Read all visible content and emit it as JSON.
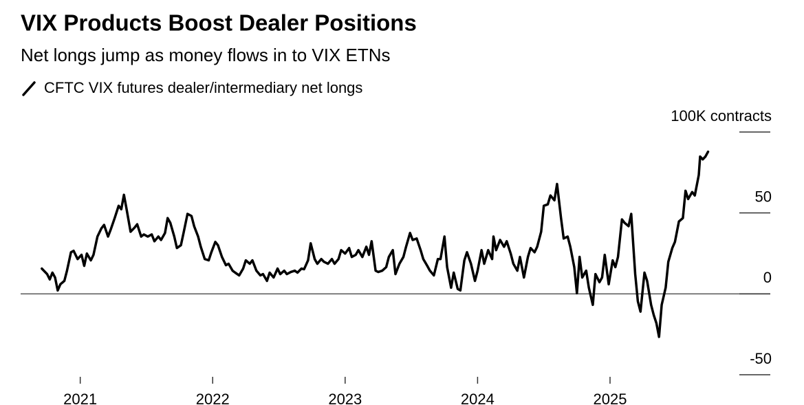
{
  "chart_data": {
    "type": "line",
    "title": "VIX Products Boost Dealer Positions",
    "subtitle": "Net longs jump as money flows in to VIX ETNs",
    "xlim": [
      2020.55,
      2026.21
    ],
    "xticks": [
      2021,
      2022,
      2023,
      2024,
      2025
    ],
    "ylim": [
      -50,
      100
    ],
    "yticks": [
      -50,
      0,
      50,
      {
        "value": 100,
        "label": "100K contracts"
      }
    ],
    "x": [
      2020.71,
      2020.75,
      2020.77,
      2020.79,
      2020.81,
      2020.83,
      2020.85,
      2020.88,
      2020.9,
      2020.93,
      2020.95,
      2020.98,
      2021.01,
      2021.03,
      2021.05,
      2021.08,
      2021.1,
      2021.13,
      2021.16,
      2021.18,
      2021.21,
      2021.23,
      2021.26,
      2021.29,
      2021.31,
      2021.33,
      2021.35,
      2021.38,
      2021.41,
      2021.43,
      2021.46,
      2021.48,
      2021.51,
      2021.54,
      2021.56,
      2021.59,
      2021.61,
      2021.64,
      2021.66,
      2021.68,
      2021.71,
      2021.73,
      2021.76,
      2021.78,
      2021.81,
      2021.84,
      2021.86,
      2021.89,
      2021.91,
      2021.94,
      2021.97,
      2021.99,
      2022.02,
      2022.04,
      2022.07,
      2022.1,
      2022.12,
      2022.15,
      2022.17,
      2022.2,
      2022.23,
      2022.25,
      2022.28,
      2022.3,
      2022.33,
      2022.36,
      2022.38,
      2022.41,
      2022.43,
      2022.46,
      2022.49,
      2022.51,
      2022.54,
      2022.56,
      2022.59,
      2022.62,
      2022.64,
      2022.67,
      2022.69,
      2022.72,
      2022.74,
      2022.77,
      2022.79,
      2022.82,
      2022.84,
      2022.87,
      2022.9,
      2022.92,
      2022.95,
      2022.97,
      2023.0,
      2023.03,
      2023.05,
      2023.08,
      2023.1,
      2023.13,
      2023.16,
      2023.18,
      2023.2,
      2023.23,
      2023.25,
      2023.28,
      2023.31,
      2023.33,
      2023.36,
      2023.38,
      2023.41,
      2023.44,
      2023.46,
      2023.49,
      2023.51,
      2023.54,
      2023.57,
      2023.59,
      2023.62,
      2023.64,
      2023.67,
      2023.7,
      2023.72,
      2023.75,
      2023.77,
      2023.8,
      2023.82,
      2023.85,
      2023.87,
      2023.9,
      2023.92,
      2023.95,
      2023.98,
      2024.0,
      2024.03,
      2024.05,
      2024.08,
      2024.11,
      2024.12,
      2024.14,
      2024.17,
      2024.2,
      2024.22,
      2024.25,
      2024.27,
      2024.3,
      2024.32,
      2024.35,
      2024.38,
      2024.4,
      2024.43,
      2024.45,
      2024.48,
      2024.5,
      2024.53,
      2024.55,
      2024.58,
      2024.6,
      2024.63,
      2024.65,
      2024.68,
      2024.7,
      2024.73,
      2024.75,
      2024.77,
      2024.79,
      2024.82,
      2024.84,
      2024.87,
      2024.89,
      2024.92,
      2024.94,
      2024.96,
      2024.99,
      2025.02,
      2025.04,
      2025.06,
      2025.09,
      2025.11,
      2025.14,
      2025.16,
      2025.19,
      2025.21,
      2025.23,
      2025.26,
      2025.28,
      2025.31,
      2025.33,
      2025.35,
      2025.37,
      2025.39,
      2025.42,
      2025.44,
      2025.47,
      2025.49,
      2025.52,
      2025.55,
      2025.57,
      2025.59,
      2025.62,
      2025.64,
      2025.67,
      2025.68,
      2025.7,
      2025.72,
      2025.74
    ],
    "series": [
      {
        "name": "CFTC VIX futures dealer/intermediary net longs",
        "color": "#000000",
        "values": [
          15.6,
          12.2,
          8.9,
          13.1,
          10.1,
          2.1,
          5.9,
          8.0,
          14.3,
          25.7,
          26.6,
          21.5,
          24.1,
          17.3,
          24.9,
          20.7,
          24.1,
          35.4,
          40.5,
          42.6,
          35.4,
          39.7,
          46.8,
          54.4,
          52.3,
          61.2,
          52.3,
          38.4,
          40.9,
          43.0,
          35.4,
          36.7,
          35.4,
          36.7,
          32.5,
          35.4,
          33.3,
          37.6,
          46.8,
          43.9,
          35.4,
          28.3,
          30.0,
          37.6,
          49.4,
          48.1,
          41.8,
          35.4,
          29.1,
          21.5,
          20.7,
          25.7,
          32.1,
          30.0,
          22.8,
          17.7,
          18.6,
          14.3,
          13.1,
          11.4,
          15.6,
          20.7,
          18.6,
          20.7,
          14.3,
          11.4,
          12.2,
          8.0,
          13.1,
          10.1,
          15.6,
          12.2,
          14.3,
          12.2,
          13.5,
          14.3,
          13.1,
          15.6,
          15.2,
          20.7,
          31.2,
          21.5,
          18.6,
          21.5,
          19.8,
          18.6,
          21.5,
          18.6,
          21.5,
          27.0,
          24.9,
          28.3,
          22.8,
          24.1,
          27.0,
          22.8,
          29.1,
          24.1,
          32.5,
          14.3,
          13.5,
          14.3,
          16.5,
          22.8,
          27.0,
          12.2,
          18.6,
          22.8,
          29.1,
          37.6,
          33.3,
          34.2,
          27.0,
          21.5,
          17.3,
          14.3,
          11.4,
          21.5,
          21.5,
          35.4,
          16.5,
          3.8,
          13.1,
          3.0,
          2.1,
          20.7,
          25.7,
          18.6,
          8.0,
          14.3,
          27.0,
          18.6,
          27.0,
          21.5,
          35.4,
          27.0,
          33.3,
          29.1,
          32.5,
          24.9,
          18.6,
          14.3,
          22.8,
          10.1,
          22.8,
          28.3,
          25.7,
          29.1,
          38.4,
          54.4,
          55.3,
          60.8,
          57.8,
          67.9,
          46.8,
          34.2,
          35.4,
          29.1,
          16.5,
          0.4,
          22.8,
          10.1,
          14.3,
          3.8,
          -6.8,
          12.2,
          7.2,
          10.1,
          24.1,
          5.9,
          20.7,
          16.5,
          22.8,
          46.0,
          43.9,
          41.8,
          49.4,
          12.2,
          -4.6,
          -11.0,
          13.1,
          8.0,
          -6.8,
          -13.1,
          -18.1,
          -26.6,
          -6.8,
          3.8,
          19.8,
          28.3,
          32.1,
          44.7,
          46.8,
          63.7,
          58.6,
          62.9,
          60.8,
          73.4,
          84.8,
          83.1,
          84.8,
          87.8
        ]
      }
    ]
  }
}
